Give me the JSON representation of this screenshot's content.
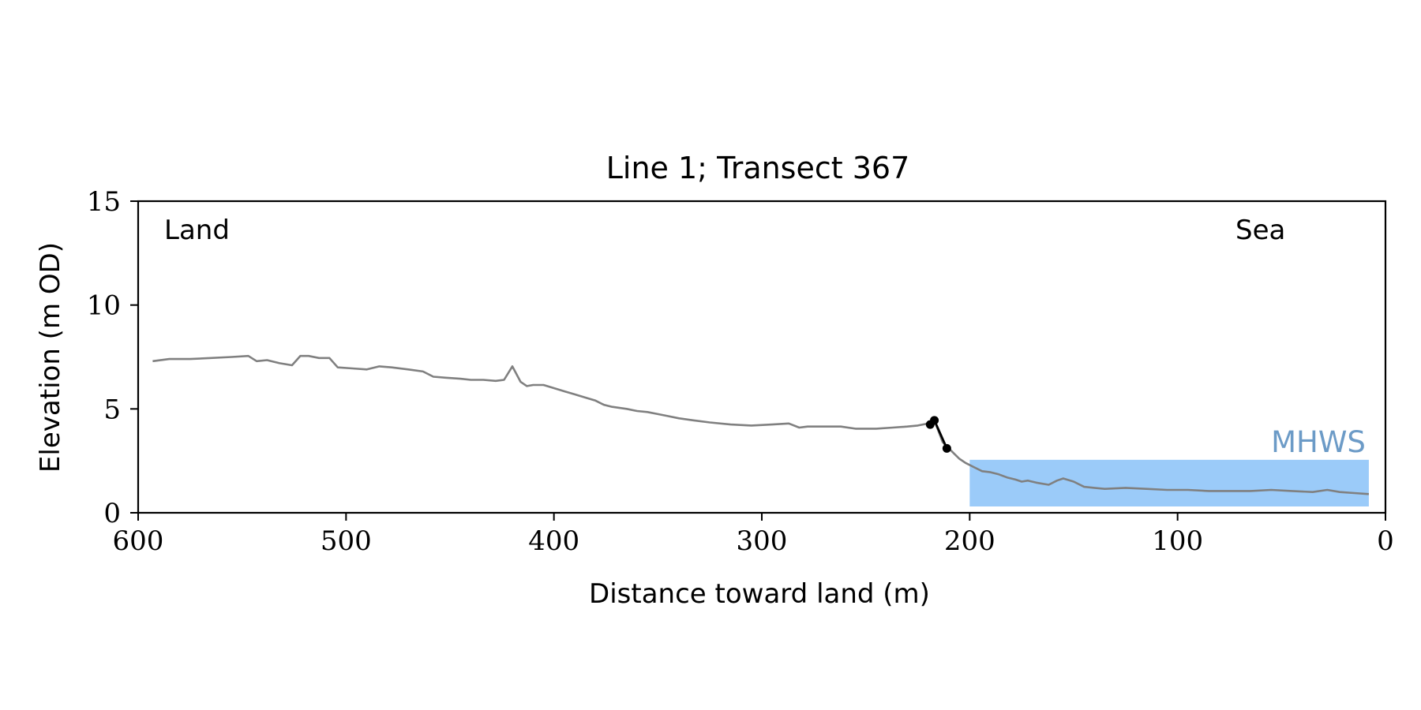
{
  "chart_data": {
    "type": "line",
    "title": "Line 1; Transect 367",
    "xlabel": "Distance toward land (m)",
    "ylabel": "Elevation (m OD)",
    "xlim": [
      600,
      0
    ],
    "ylim": [
      0,
      15
    ],
    "x_ticks": [
      600,
      500,
      400,
      300,
      200,
      100,
      0
    ],
    "y_ticks": [
      0,
      5,
      10,
      15
    ],
    "grid": false,
    "annotations": {
      "land": "Land",
      "sea": "Sea",
      "mhws_label": "MHWS"
    },
    "mhws": {
      "elevation": 2.55,
      "x_from": 200,
      "x_to": 8
    },
    "series": [
      {
        "color": "#808080",
        "x": [
          593,
          585,
          575,
          565,
          555,
          547,
          543,
          538,
          532,
          526,
          522,
          518,
          513,
          508,
          504,
          497,
          490,
          484,
          478,
          470,
          463,
          458,
          452,
          445,
          440,
          434,
          428,
          424,
          420,
          416,
          413,
          410,
          405,
          400,
          395,
          390,
          385,
          380,
          376,
          372,
          365,
          360,
          355,
          350,
          345,
          340,
          333,
          325,
          315,
          305,
          295,
          287,
          282,
          278,
          270,
          262,
          255,
          245,
          237,
          230,
          225,
          220,
          217,
          213,
          210,
          207,
          205,
          202,
          198,
          194,
          190,
          186,
          182,
          178,
          175,
          172,
          168,
          162,
          158,
          155,
          150,
          145,
          140,
          135,
          125,
          115,
          105,
          95,
          85,
          75,
          65,
          55,
          45,
          35,
          28,
          22,
          15,
          8
        ],
        "y": [
          7.3,
          7.4,
          7.4,
          7.45,
          7.5,
          7.55,
          7.3,
          7.35,
          7.2,
          7.1,
          7.55,
          7.55,
          7.45,
          7.45,
          7.0,
          6.95,
          6.9,
          7.05,
          7.0,
          6.9,
          6.8,
          6.55,
          6.5,
          6.45,
          6.4,
          6.4,
          6.35,
          6.4,
          7.05,
          6.3,
          6.1,
          6.15,
          6.15,
          6.0,
          5.85,
          5.7,
          5.55,
          5.4,
          5.2,
          5.1,
          5.0,
          4.9,
          4.85,
          4.75,
          4.65,
          4.55,
          4.45,
          4.35,
          4.25,
          4.2,
          4.25,
          4.3,
          4.1,
          4.15,
          4.15,
          4.15,
          4.05,
          4.05,
          4.1,
          4.15,
          4.2,
          4.3,
          4.45,
          3.4,
          3.1,
          2.8,
          2.6,
          2.4,
          2.2,
          2.0,
          1.95,
          1.85,
          1.7,
          1.6,
          1.5,
          1.55,
          1.45,
          1.35,
          1.55,
          1.65,
          1.5,
          1.25,
          1.2,
          1.15,
          1.2,
          1.15,
          1.1,
          1.1,
          1.05,
          1.05,
          1.05,
          1.1,
          1.05,
          1.0,
          1.1,
          1.0,
          0.95,
          0.9
        ]
      },
      {
        "color": "#000000",
        "x": [
          219,
          217,
          211
        ],
        "y": [
          4.25,
          4.45,
          3.1
        ]
      }
    ]
  }
}
